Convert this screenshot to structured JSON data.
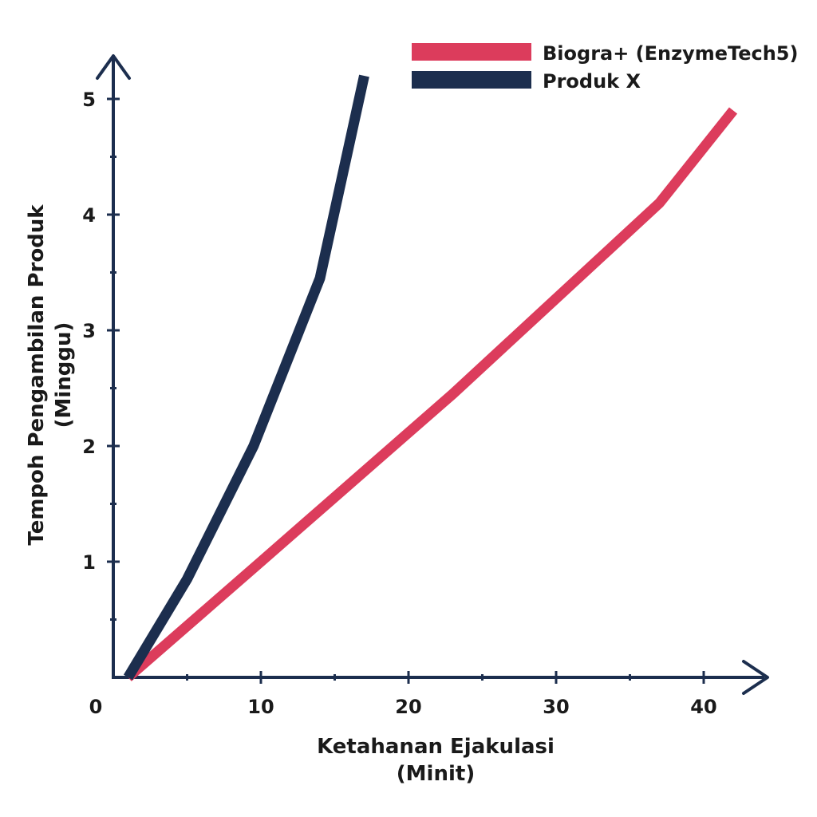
{
  "chart_data": {
    "type": "line",
    "xlabel": [
      "Ketahanan Ejakulasi",
      "(Minit)"
    ],
    "ylabel": [
      "Tempoh Pengambilan Produk",
      "(Minggu)"
    ],
    "x_ticks": [
      "0",
      "10",
      "20",
      "30",
      "40"
    ],
    "y_ticks": [
      "1",
      "2",
      "3",
      "4",
      "5"
    ],
    "xlim": [
      0,
      45
    ],
    "ylim": [
      0,
      5.5
    ],
    "grid": false,
    "legend_position": "top-right",
    "axis_color": "#1c2e4e",
    "series": [
      {
        "name": "Biogra+ (EnzymeTech5)",
        "color": "#dc3c5c",
        "points": [
          [
            1,
            0
          ],
          [
            10,
            1.0
          ],
          [
            23,
            2.45
          ],
          [
            37,
            4.1
          ],
          [
            42,
            4.9
          ]
        ]
      },
      {
        "name": "Produk X",
        "color": "#1c2e4e",
        "points": [
          [
            1,
            0
          ],
          [
            5,
            0.85
          ],
          [
            9.5,
            2.0
          ],
          [
            14,
            3.45
          ],
          [
            17,
            5.2
          ]
        ]
      }
    ]
  }
}
